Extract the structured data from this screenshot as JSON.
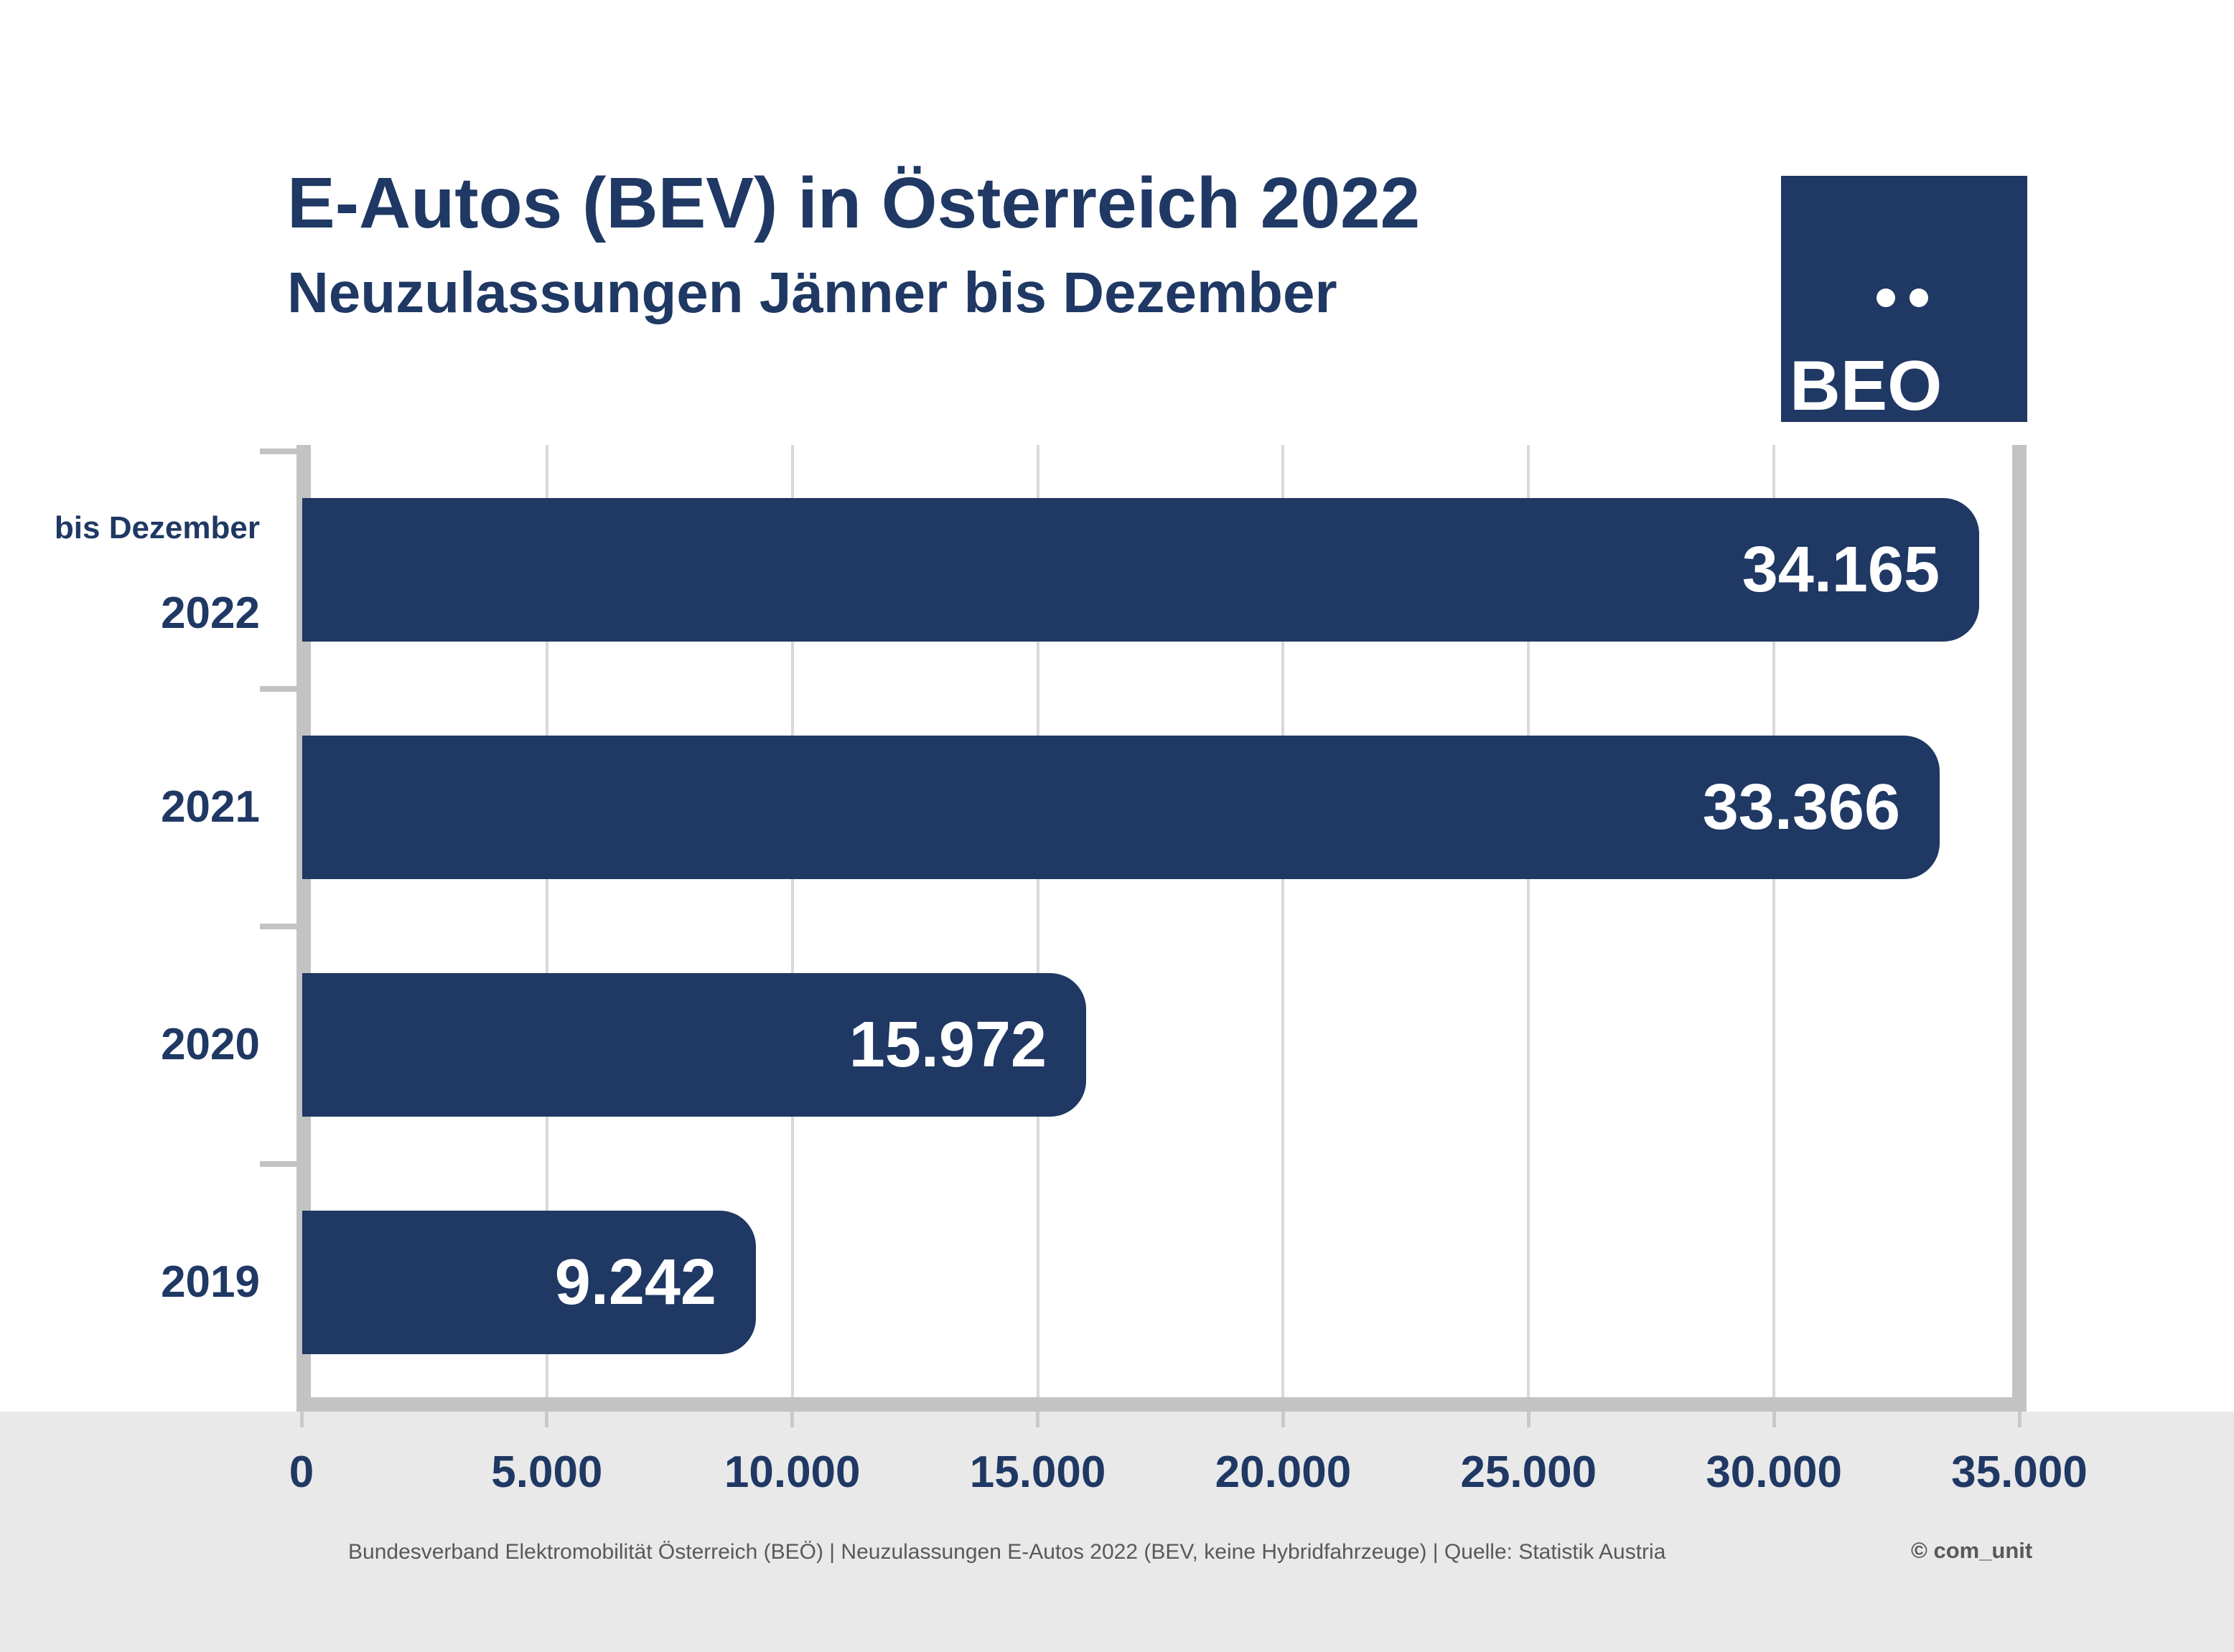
{
  "header": {
    "title": "E-Autos (BEV) in Österreich 2022",
    "subtitle": "Neuzulassungen Jänner bis Dezember"
  },
  "logo": {
    "text": "BEO",
    "background": "#1f3864"
  },
  "chart_data": {
    "type": "bar",
    "orientation": "horizontal",
    "title": "E-Autos (BEV) in Österreich 2022",
    "subtitle": "Neuzulassungen Jänner bis Dezember",
    "categories": [
      "2022",
      "2021",
      "2020",
      "2019"
    ],
    "category_note": {
      "text": "bis Dezember",
      "applies_to": "2022"
    },
    "values": [
      34165,
      33366,
      15972,
      9242
    ],
    "value_labels": [
      "34.165",
      "33.366",
      "15.972",
      "9.242"
    ],
    "x_axis": {
      "min": 0,
      "max": 35000,
      "tick_values": [
        0,
        5000,
        10000,
        15000,
        20000,
        25000,
        30000,
        35000
      ],
      "tick_labels": [
        "0",
        "5.000",
        "10.000",
        "15.000",
        "20.000",
        "25.000",
        "30.000",
        "35.000"
      ]
    },
    "bar_color": "#1f3864",
    "value_label_color": "#ffffff",
    "grid": true,
    "legend": false
  },
  "footer": {
    "source": "Bundesverband Elektromobilität Österreich (BEÖ) | Neuzulassungen E-Autos 2022 (BEV, keine Hybridfahrzeuge) | Quelle: Statistik Austria",
    "credit": "© com_unit"
  },
  "colors": {
    "navy": "#1f3864",
    "axis": "#c3c3c3",
    "gridline": "#d9d9d9",
    "footer_band": "#e9e9e9",
    "footer_text": "#595959"
  }
}
